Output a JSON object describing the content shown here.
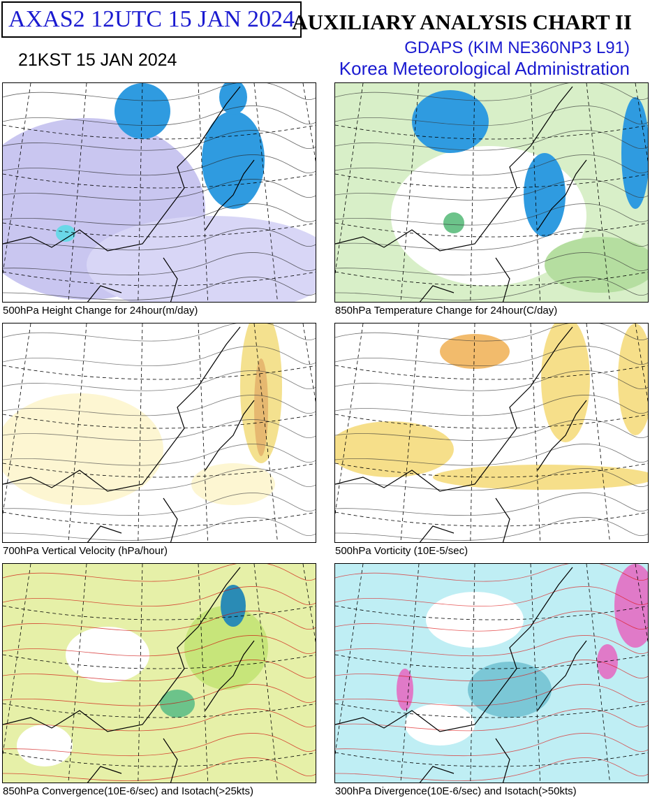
{
  "header": {
    "code_box": "AXAS2  12UTC 15 JAN 2024",
    "local_time": "21KST 15 JAN 2024",
    "title": "AUXILIARY ANALYSIS CHART II",
    "model": "GDAPS (KIM NE360NP3 L91)",
    "agency": "Korea Meteorological Administration"
  },
  "panels": [
    {
      "caption": "500hPa Height Change for 24hour(m/day)"
    },
    {
      "caption": "850hPa Temperature Change for 24hour(C/day)"
    },
    {
      "caption": "700hPa Vertical Velocity (hPa/hour)"
    },
    {
      "caption": "500hPa Vorticity (10E-5/sec)"
    },
    {
      "caption": "850hPa Convergence(10E-6/sec) and Isotach(>25kts)"
    },
    {
      "caption": "300hPa Divergence(10E-6/sec) and Isotach(>50kts)"
    }
  ]
}
